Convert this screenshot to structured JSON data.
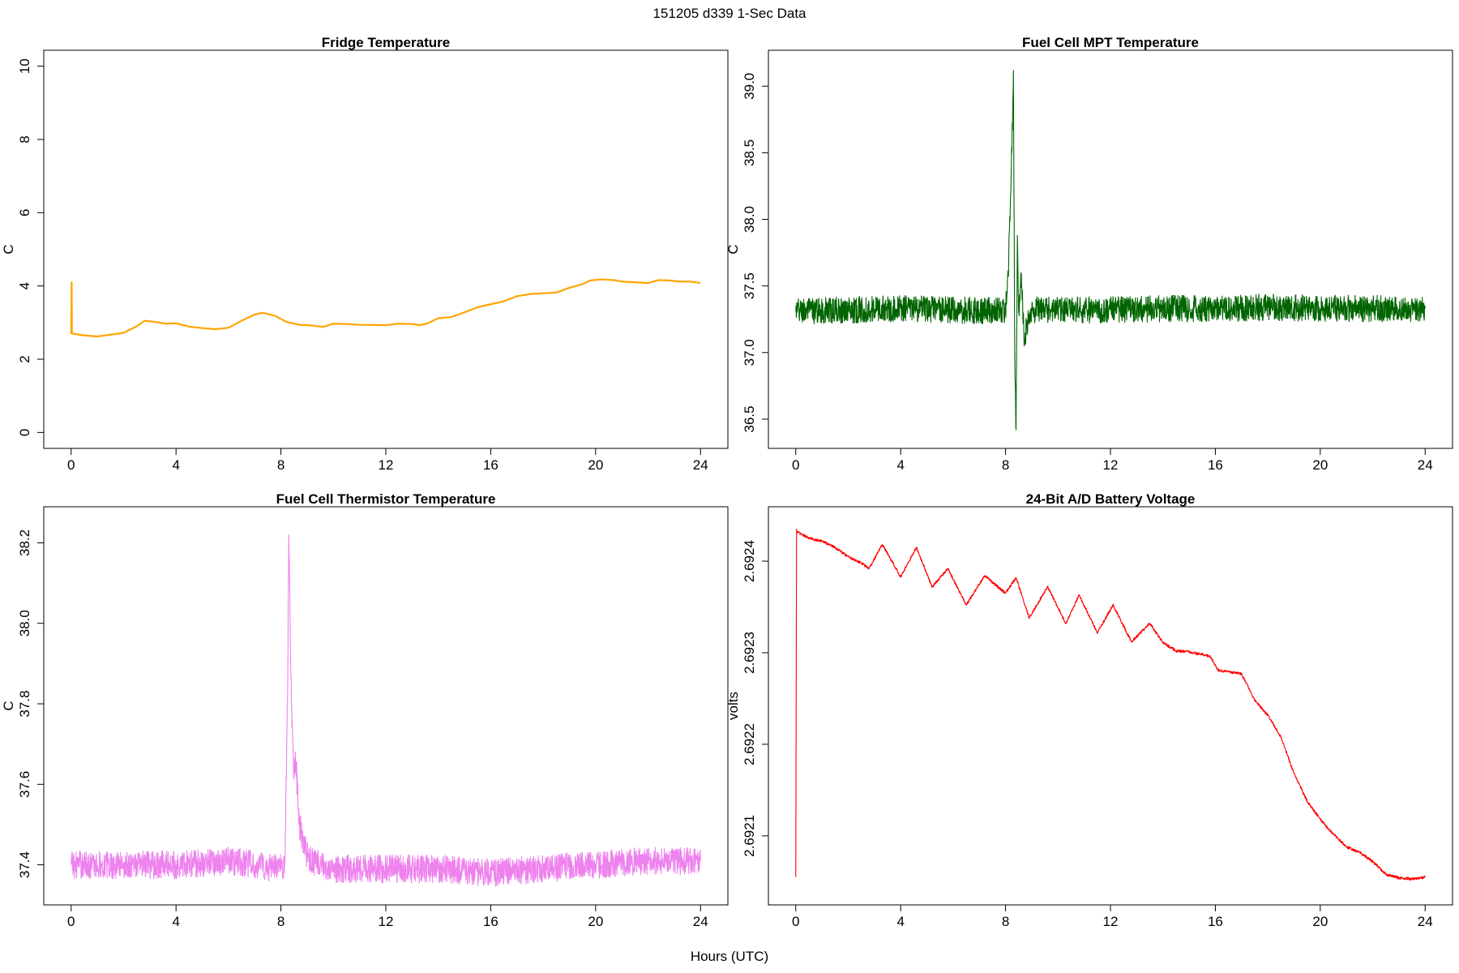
{
  "figure": {
    "title": "151205   d339   1-Sec Data",
    "shared_xlabel": "Hours (UTC)"
  },
  "chart_data": [
    {
      "type": "line",
      "title": "Fridge Temperature",
      "xlabel": "",
      "ylabel": "C",
      "xlim": [
        0,
        24
      ],
      "ylim": [
        0,
        10
      ],
      "xticks": [
        0,
        4,
        8,
        12,
        16,
        20,
        24
      ],
      "yticks": [
        0,
        2,
        4,
        6,
        8,
        10
      ],
      "ytick_labels": [
        "0",
        "2",
        "4",
        "6",
        "8",
        "10"
      ],
      "color": "#FFA500",
      "noise": 0.0,
      "x": [
        0,
        0.02,
        0.03,
        0.5,
        1,
        1.5,
        2,
        2.5,
        2.8,
        3.2,
        3.6,
        4,
        4.5,
        5,
        5.5,
        6,
        6.5,
        7,
        7.3,
        7.8,
        8.2,
        8.7,
        9.2,
        9.6,
        10,
        10.5,
        11,
        12,
        12.5,
        13,
        13.3,
        13.6,
        14,
        14.5,
        15,
        15.5,
        16,
        16.5,
        17,
        17.5,
        18,
        18.5,
        19,
        19.5,
        19.8,
        20.2,
        20.7,
        21,
        21.5,
        22,
        22.4,
        22.8,
        23.2,
        23.6,
        24
      ],
      "y": [
        2.7,
        4.1,
        2.7,
        2.65,
        2.62,
        2.67,
        2.72,
        2.9,
        3.05,
        3.02,
        2.97,
        2.98,
        2.89,
        2.85,
        2.82,
        2.86,
        3.05,
        3.22,
        3.27,
        3.18,
        3.02,
        2.94,
        2.92,
        2.88,
        2.97,
        2.96,
        2.94,
        2.93,
        2.97,
        2.96,
        2.93,
        2.98,
        3.12,
        3.15,
        3.28,
        3.42,
        3.5,
        3.58,
        3.72,
        3.78,
        3.8,
        3.82,
        3.95,
        4.05,
        4.15,
        4.18,
        4.16,
        4.12,
        4.1,
        4.08,
        4.16,
        4.15,
        4.12,
        4.12,
        4.08
      ]
    },
    {
      "type": "line",
      "title": "Fuel Cell MPT Temperature",
      "xlabel": "",
      "ylabel": "C",
      "xlim": [
        0,
        24
      ],
      "ylim": [
        36.4,
        39.15
      ],
      "xticks": [
        0,
        4,
        8,
        12,
        16,
        20,
        24
      ],
      "yticks": [
        36.5,
        37.0,
        37.5,
        38.0,
        38.5,
        39.0
      ],
      "ytick_labels": [
        "36.5",
        "37.0",
        "37.5",
        "38.0",
        "38.5",
        "39.0"
      ],
      "color": "#006400",
      "noise": 0.1,
      "x": [
        0,
        2,
        4,
        6,
        8,
        8.1,
        8.2,
        8.3,
        8.35,
        8.4,
        8.45,
        8.5,
        8.6,
        8.7,
        9,
        10,
        12,
        14,
        16,
        18,
        20,
        22,
        24
      ],
      "y": [
        37.31,
        37.32,
        37.33,
        37.32,
        37.31,
        37.6,
        38.2,
        39.12,
        37.0,
        36.42,
        37.88,
        37.3,
        37.6,
        37.1,
        37.32,
        37.32,
        37.32,
        37.33,
        37.33,
        37.34,
        37.33,
        37.33,
        37.33
      ]
    },
    {
      "type": "line",
      "title": "Fuel Cell Thermistor Temperature",
      "xlabel": "",
      "ylabel": "C",
      "xlim": [
        0,
        24
      ],
      "ylim": [
        37.34,
        38.25
      ],
      "xticks": [
        0,
        4,
        8,
        12,
        16,
        20,
        24
      ],
      "yticks": [
        37.4,
        37.6,
        37.8,
        38.0,
        38.2
      ],
      "ytick_labels": [
        "37.4",
        "37.6",
        "37.8",
        "38.0",
        "38.2"
      ],
      "color": "#EE82EE",
      "noise": 0.035,
      "x": [
        0,
        2,
        4,
        6,
        7,
        8,
        8.15,
        8.25,
        8.3,
        8.4,
        8.5,
        8.55,
        8.7,
        9,
        9.5,
        10,
        12,
        14,
        16,
        18,
        20,
        22,
        24
      ],
      "y": [
        37.4,
        37.4,
        37.4,
        37.41,
        37.4,
        37.39,
        37.4,
        37.8,
        38.22,
        37.8,
        37.62,
        37.68,
        37.5,
        37.42,
        37.4,
        37.39,
        37.39,
        37.39,
        37.38,
        37.39,
        37.4,
        37.41,
        37.41
      ]
    },
    {
      "type": "line",
      "title": "24-Bit A/D Battery Voltage",
      "xlabel": "",
      "ylabel": "volts",
      "xlim": [
        0,
        24
      ],
      "ylim": [
        2.692042,
        2.692442
      ],
      "xticks": [
        0,
        4,
        8,
        12,
        16,
        20,
        24
      ],
      "yticks": [
        2.6921,
        2.6922,
        2.6923,
        2.6924
      ],
      "ytick_labels": [
        "2.6921",
        "2.6922",
        "2.6923",
        "2.6924"
      ],
      "color": "#FF0000",
      "noise": 1.5e-06,
      "x": [
        0,
        0.03,
        0.06,
        0.5,
        1,
        1.5,
        2,
        2.5,
        2.8,
        3.3,
        4,
        4.6,
        5.2,
        5.8,
        6.5,
        7.2,
        8,
        8.4,
        8.9,
        9.6,
        10.3,
        10.8,
        11.5,
        12.1,
        12.8,
        13.5,
        14,
        14.5,
        15,
        15.5,
        15.8,
        16.1,
        16.5,
        17,
        17.5,
        18,
        18.5,
        19,
        19.5,
        20,
        20.5,
        21,
        21.5,
        22,
        22.5,
        23,
        23.5,
        24
      ],
      "y": [
        2.692055,
        2.692435,
        2.692432,
        2.692425,
        2.692422,
        2.692415,
        2.692405,
        2.692398,
        2.692392,
        2.692418,
        2.692383,
        2.692415,
        2.692372,
        2.692392,
        2.692352,
        2.692384,
        2.692365,
        2.692382,
        2.692338,
        2.692372,
        2.692332,
        2.692363,
        2.692322,
        2.692352,
        2.692312,
        2.692332,
        2.692311,
        2.692302,
        2.692301,
        2.692298,
        2.692296,
        2.692281,
        2.692279,
        2.692277,
        2.692248,
        2.692232,
        2.692208,
        2.692168,
        2.692138,
        2.692118,
        2.692102,
        2.692088,
        2.692082,
        2.692072,
        2.692058,
        2.692054,
        2.692053,
        2.692055
      ]
    }
  ]
}
